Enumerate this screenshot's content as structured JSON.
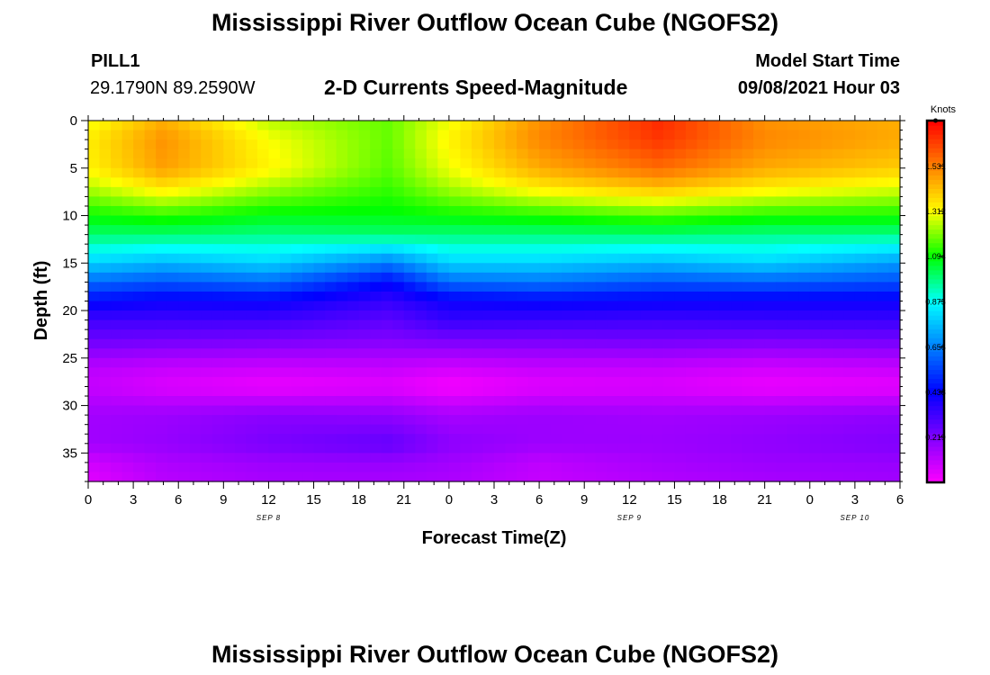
{
  "header": {
    "title": "Mississippi River Outflow Ocean Cube (NGOFS2)",
    "station": "PILL1",
    "coords": "29.1790N  89.2590W",
    "subtitle": "2-D Currents Speed-Magnitude",
    "model_label": "Model Start Time",
    "model_time": "09/08/2021 Hour 03",
    "footer_title": "Mississippi River Outflow Ocean Cube (NGOFS2)"
  },
  "chart_data": {
    "type": "heatmap",
    "title": "2-D Currents Speed-Magnitude",
    "xlabel": "Forecast Time(Z)",
    "ylabel": "Depth (ft)",
    "colorbar_label": "Knots",
    "x_range_hours": [
      0,
      54
    ],
    "y_range": [
      0,
      38
    ],
    "y_inverted": true,
    "x_tick_labels": [
      "0",
      "3",
      "6",
      "9",
      "12",
      "15",
      "18",
      "21",
      "0",
      "3",
      "6",
      "9",
      "12",
      "15",
      "18",
      "21",
      "0",
      "3",
      "6"
    ],
    "y_ticks": [
      0,
      5,
      10,
      15,
      20,
      25,
      30,
      35
    ],
    "date_labels": [
      {
        "label": "SEP 8",
        "at_hour": 12
      },
      {
        "label": "SEP 9",
        "at_hour": 36
      },
      {
        "label": "SEP 10",
        "at_hour": 51
      }
    ],
    "colorbar_ticks": [
      "1.531",
      "1.312",
      "1.094",
      "0.875",
      "0.656",
      "0.438",
      "0.219"
    ],
    "colorbar_range": [
      0.0,
      1.75
    ],
    "colormap": [
      "#ff00ff",
      "#8000ff",
      "#0000ff",
      "#0080ff",
      "#00ffff",
      "#00ff00",
      "#ffff00",
      "#ff8000",
      "#ff0000"
    ],
    "speed_profile_depths": [
      0,
      2,
      5,
      7,
      10,
      12,
      15,
      17,
      19,
      21,
      23,
      26,
      28,
      31,
      34,
      36,
      38
    ],
    "speed_profile_times": [
      0,
      5,
      12,
      20,
      24,
      30,
      38,
      45,
      54
    ],
    "speed_values": [
      [
        1.3,
        1.45,
        1.25,
        1.18,
        1.3,
        1.5,
        1.68,
        1.5,
        1.45
      ],
      [
        1.34,
        1.5,
        1.31,
        1.18,
        1.33,
        1.52,
        1.66,
        1.52,
        1.46
      ],
      [
        1.33,
        1.48,
        1.33,
        1.17,
        1.3,
        1.46,
        1.57,
        1.46,
        1.4
      ],
      [
        1.25,
        1.36,
        1.24,
        1.14,
        1.24,
        1.35,
        1.43,
        1.35,
        1.29
      ],
      [
        1.1,
        1.13,
        1.08,
        1.08,
        1.1,
        1.12,
        1.16,
        1.12,
        1.11
      ],
      [
        1.0,
        1.0,
        0.98,
        1.0,
        0.99,
        0.99,
        1.0,
        0.98,
        0.98
      ],
      [
        0.8,
        0.75,
        0.8,
        0.65,
        0.8,
        0.8,
        0.75,
        0.8,
        0.7
      ],
      [
        0.62,
        0.58,
        0.62,
        0.45,
        0.62,
        0.64,
        0.58,
        0.6,
        0.57
      ],
      [
        0.45,
        0.42,
        0.43,
        0.35,
        0.42,
        0.44,
        0.43,
        0.42,
        0.42
      ],
      [
        0.33,
        0.33,
        0.33,
        0.28,
        0.35,
        0.34,
        0.33,
        0.34,
        0.34
      ],
      [
        0.26,
        0.25,
        0.24,
        0.22,
        0.24,
        0.24,
        0.25,
        0.24,
        0.25
      ],
      [
        0.12,
        0.1,
        0.09,
        0.1,
        0.08,
        0.1,
        0.1,
        0.08,
        0.1
      ],
      [
        0.1,
        0.06,
        0.03,
        0.05,
        0.01,
        0.05,
        0.06,
        0.03,
        0.04
      ],
      [
        0.16,
        0.17,
        0.2,
        0.19,
        0.15,
        0.17,
        0.16,
        0.17,
        0.19
      ],
      [
        0.16,
        0.18,
        0.23,
        0.27,
        0.2,
        0.17,
        0.17,
        0.19,
        0.22
      ],
      [
        0.08,
        0.14,
        0.17,
        0.18,
        0.16,
        0.11,
        0.15,
        0.17,
        0.18
      ],
      [
        0.05,
        0.12,
        0.15,
        0.15,
        0.14,
        0.1,
        0.13,
        0.15,
        0.16
      ]
    ]
  }
}
